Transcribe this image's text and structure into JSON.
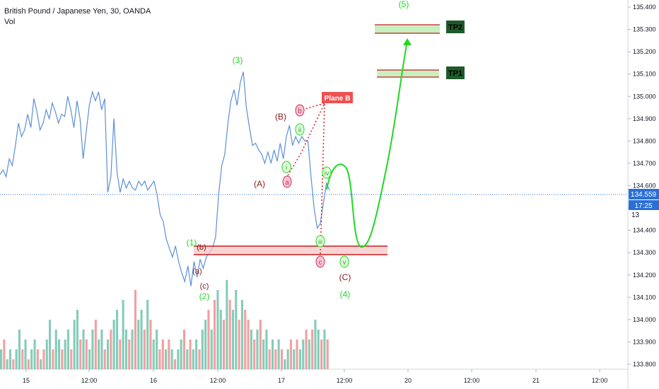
{
  "header": {
    "symbol_title": "British Pound / Japanese Yen, 30, OANDA",
    "volume_label": "Vol"
  },
  "price_axis": {
    "ticks": [
      "135.400",
      "135.300",
      "135.200",
      "135.100",
      "135.000",
      "134.900",
      "134.800",
      "134.700",
      "134.600",
      "134.500",
      "134.400",
      "134.300",
      "134.200",
      "134.100",
      "134.000",
      "133.900",
      "133.800"
    ],
    "last_price": "134.559",
    "countdown": "17:25",
    "partial_tick": "13"
  },
  "time_axis": {
    "ticks": [
      "15",
      "12:00",
      "16",
      "12:00",
      "17",
      "12:00",
      "20",
      "12:00",
      "21",
      "12:00"
    ]
  },
  "colors": {
    "price_line": "#5b8fd6",
    "wave_green": "#20d820",
    "wave_dark_red": "#8b1a1a",
    "wave_pink": "#d03060",
    "alt_path_red": "#e02020",
    "zone_red": "#c81e1e",
    "tp_box": "#1e5a2a",
    "vol_up": "#6fc3ad",
    "vol_down": "#f08f8f",
    "last_price_badge": "#2b6fd6"
  },
  "annotations": {
    "plane_b": "Plane B",
    "tp1": "TP1",
    "tp2": "TP2",
    "wave_1": "(1)",
    "wave_2": "(2)",
    "wave_3": "(3)",
    "wave_4": "(4)",
    "wave_5": "(5)",
    "wave_A": "(A)",
    "wave_B": "(B)",
    "wave_C": "(C)",
    "sub_a_left": "(a)",
    "sub_b_left": "(b)",
    "sub_c_left": "(c)",
    "circ_a": "a",
    "circ_b": "b",
    "circ_c": "c",
    "circ_i": "i",
    "circ_ii": "ii",
    "circ_iii": "iii",
    "circ_iv": "iv",
    "circ_v": "v"
  },
  "chart_data": {
    "type": "line",
    "ylim": [
      133.75,
      135.45
    ],
    "series": [
      {
        "values": [
          134.65,
          134.67,
          134.64,
          134.72,
          134.69,
          134.78,
          134.88,
          134.82,
          134.85,
          134.92,
          134.86,
          134.99,
          134.93,
          134.85,
          134.88,
          134.94,
          134.9,
          134.97,
          134.93,
          134.88,
          134.92,
          134.91,
          135.0,
          134.94,
          134.86,
          134.98,
          134.9,
          134.72,
          134.84,
          134.96,
          135.02,
          134.98,
          135.02,
          134.94,
          134.99,
          134.57,
          134.64,
          134.9,
          134.66,
          134.57,
          134.63,
          134.59,
          134.62,
          134.59,
          134.58,
          134.62,
          134.6,
          134.62,
          134.58,
          134.6,
          134.62,
          134.56,
          134.47,
          134.44,
          134.36,
          134.32,
          134.28,
          134.33,
          134.26,
          134.21,
          134.17,
          134.24,
          134.15,
          134.26,
          134.19,
          134.27,
          134.23,
          134.28,
          134.3,
          134.32,
          134.37,
          134.56,
          134.69,
          134.74,
          134.88,
          134.98,
          135.03,
          134.96,
          135.06,
          135.11,
          134.95,
          134.86,
          134.78,
          134.79,
          134.76,
          134.74,
          134.7,
          134.75,
          134.7,
          134.76,
          134.71,
          134.79,
          134.72,
          134.82,
          134.87,
          134.78,
          134.82,
          134.79,
          134.82,
          134.8,
          134.8,
          134.64,
          134.5,
          134.41,
          134.43,
          134.52,
          134.61,
          134.58
        ]
      }
    ],
    "volume": [
      2,
      3,
      1,
      2,
      1,
      2,
      4,
      2,
      3,
      1,
      2,
      3,
      2,
      1,
      2,
      3,
      5,
      2,
      4,
      3,
      2,
      3,
      4,
      2,
      5,
      6,
      3,
      4,
      3,
      2,
      4,
      5,
      3,
      4,
      2,
      3,
      4,
      5,
      6,
      3,
      7,
      4,
      3,
      4,
      8,
      5,
      6,
      4,
      7,
      5,
      3,
      4,
      2,
      3,
      2,
      3,
      2,
      1,
      2,
      3,
      4,
      2,
      3,
      2,
      3,
      2,
      4,
      5,
      6,
      4,
      7,
      8,
      6,
      5,
      9,
      7,
      6,
      8,
      5,
      7,
      6,
      5,
      4,
      3,
      4,
      5,
      3,
      4,
      2,
      3,
      2,
      3,
      2,
      1,
      2,
      3,
      2,
      3,
      2,
      3,
      4,
      3,
      4,
      5,
      4,
      3,
      4,
      3
    ],
    "volume_up": [
      1,
      0,
      1,
      1,
      0,
      1,
      1,
      0,
      1,
      0,
      1,
      1,
      0,
      1,
      0,
      1,
      1,
      0,
      1,
      1,
      0,
      1,
      1,
      0,
      1,
      1,
      0,
      1,
      0,
      1,
      1,
      0,
      1,
      1,
      0,
      1,
      0,
      1,
      1,
      0,
      1,
      1,
      0,
      1,
      0,
      1,
      1,
      0,
      1,
      0,
      1,
      1,
      0,
      0,
      1,
      0,
      1,
      0,
      1,
      1,
      0,
      1,
      0,
      1,
      1,
      0,
      1,
      1,
      0,
      1,
      0,
      1,
      1,
      0,
      1,
      0,
      1,
      1,
      0,
      1,
      0,
      0,
      1,
      0,
      1,
      0,
      1,
      1,
      0,
      1,
      0,
      1,
      0,
      1,
      1,
      0,
      1,
      0,
      1,
      1,
      0,
      1,
      0,
      1,
      1,
      0,
      1,
      0
    ]
  }
}
